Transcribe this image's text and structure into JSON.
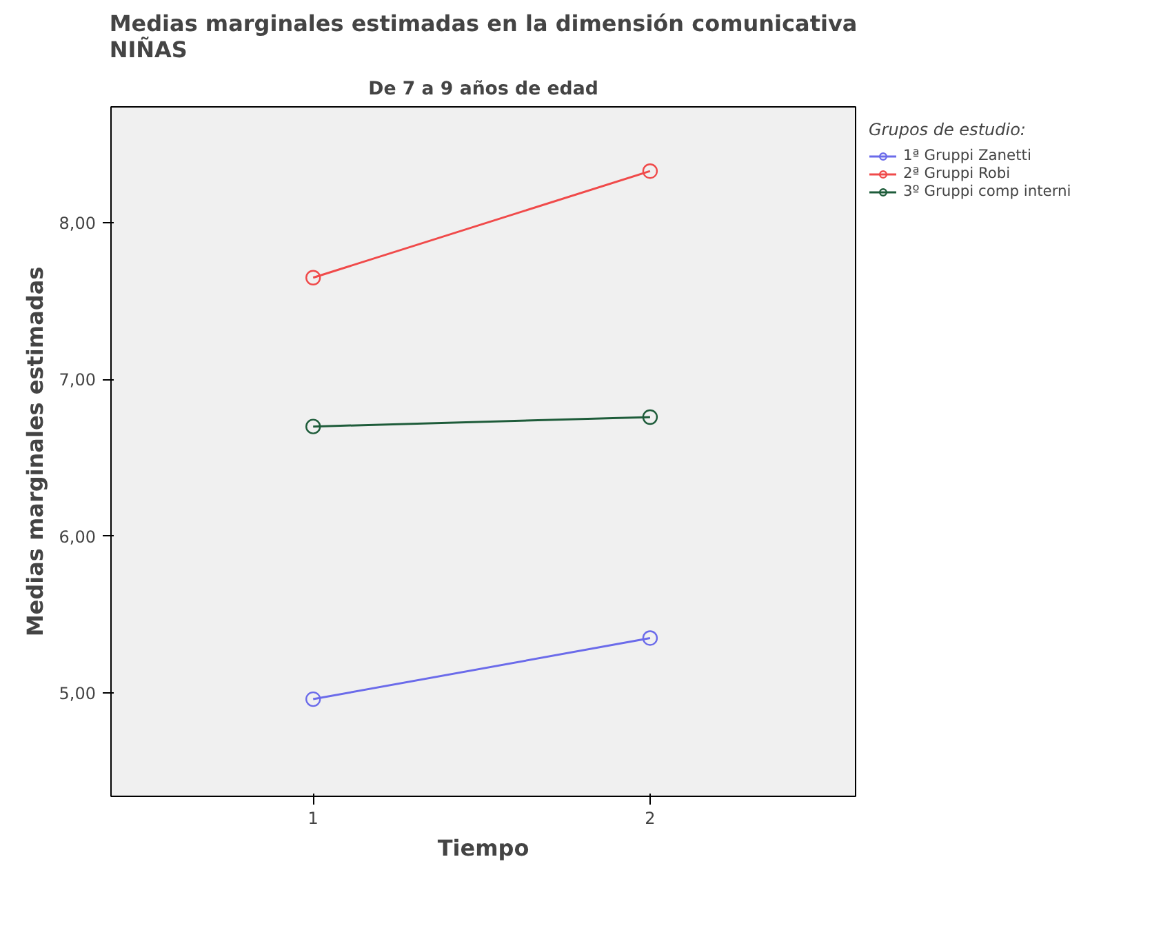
{
  "chart_data": {
    "type": "line",
    "title": "Medias marginales estimadas en la dimensión comunicativa\nNIÑAS",
    "subtitle": "De 7 a 9 años de edad",
    "xlabel": "Tiempo",
    "ylabel": "Medias marginales estimadas",
    "legend_title": "Grupos de estudio:",
    "x": [
      1,
      2
    ],
    "series": [
      {
        "name": "1ª Gruppi Zanetti",
        "color": "#6b6bea",
        "values": [
          4.96,
          5.35
        ]
      },
      {
        "name": "2ª Gruppi Robi",
        "color": "#f04a4a",
        "values": [
          7.65,
          8.33
        ]
      },
      {
        "name": "3º Gruppi comp interni",
        "color": "#1e5c3a",
        "values": [
          6.7,
          6.76
        ]
      }
    ],
    "xlim": [
      0.4,
      2.61
    ],
    "xticks": [
      1,
      2
    ],
    "ylim": [
      4.34,
      8.74
    ],
    "yticks": [
      {
        "value": 5,
        "label": "5,00"
      },
      {
        "value": 6,
        "label": "6,00"
      },
      {
        "value": 7,
        "label": "7,00"
      },
      {
        "value": 8,
        "label": "8,00"
      }
    ],
    "grid": false,
    "legend": "top right",
    "marker": "circle",
    "line_style": "solid"
  }
}
